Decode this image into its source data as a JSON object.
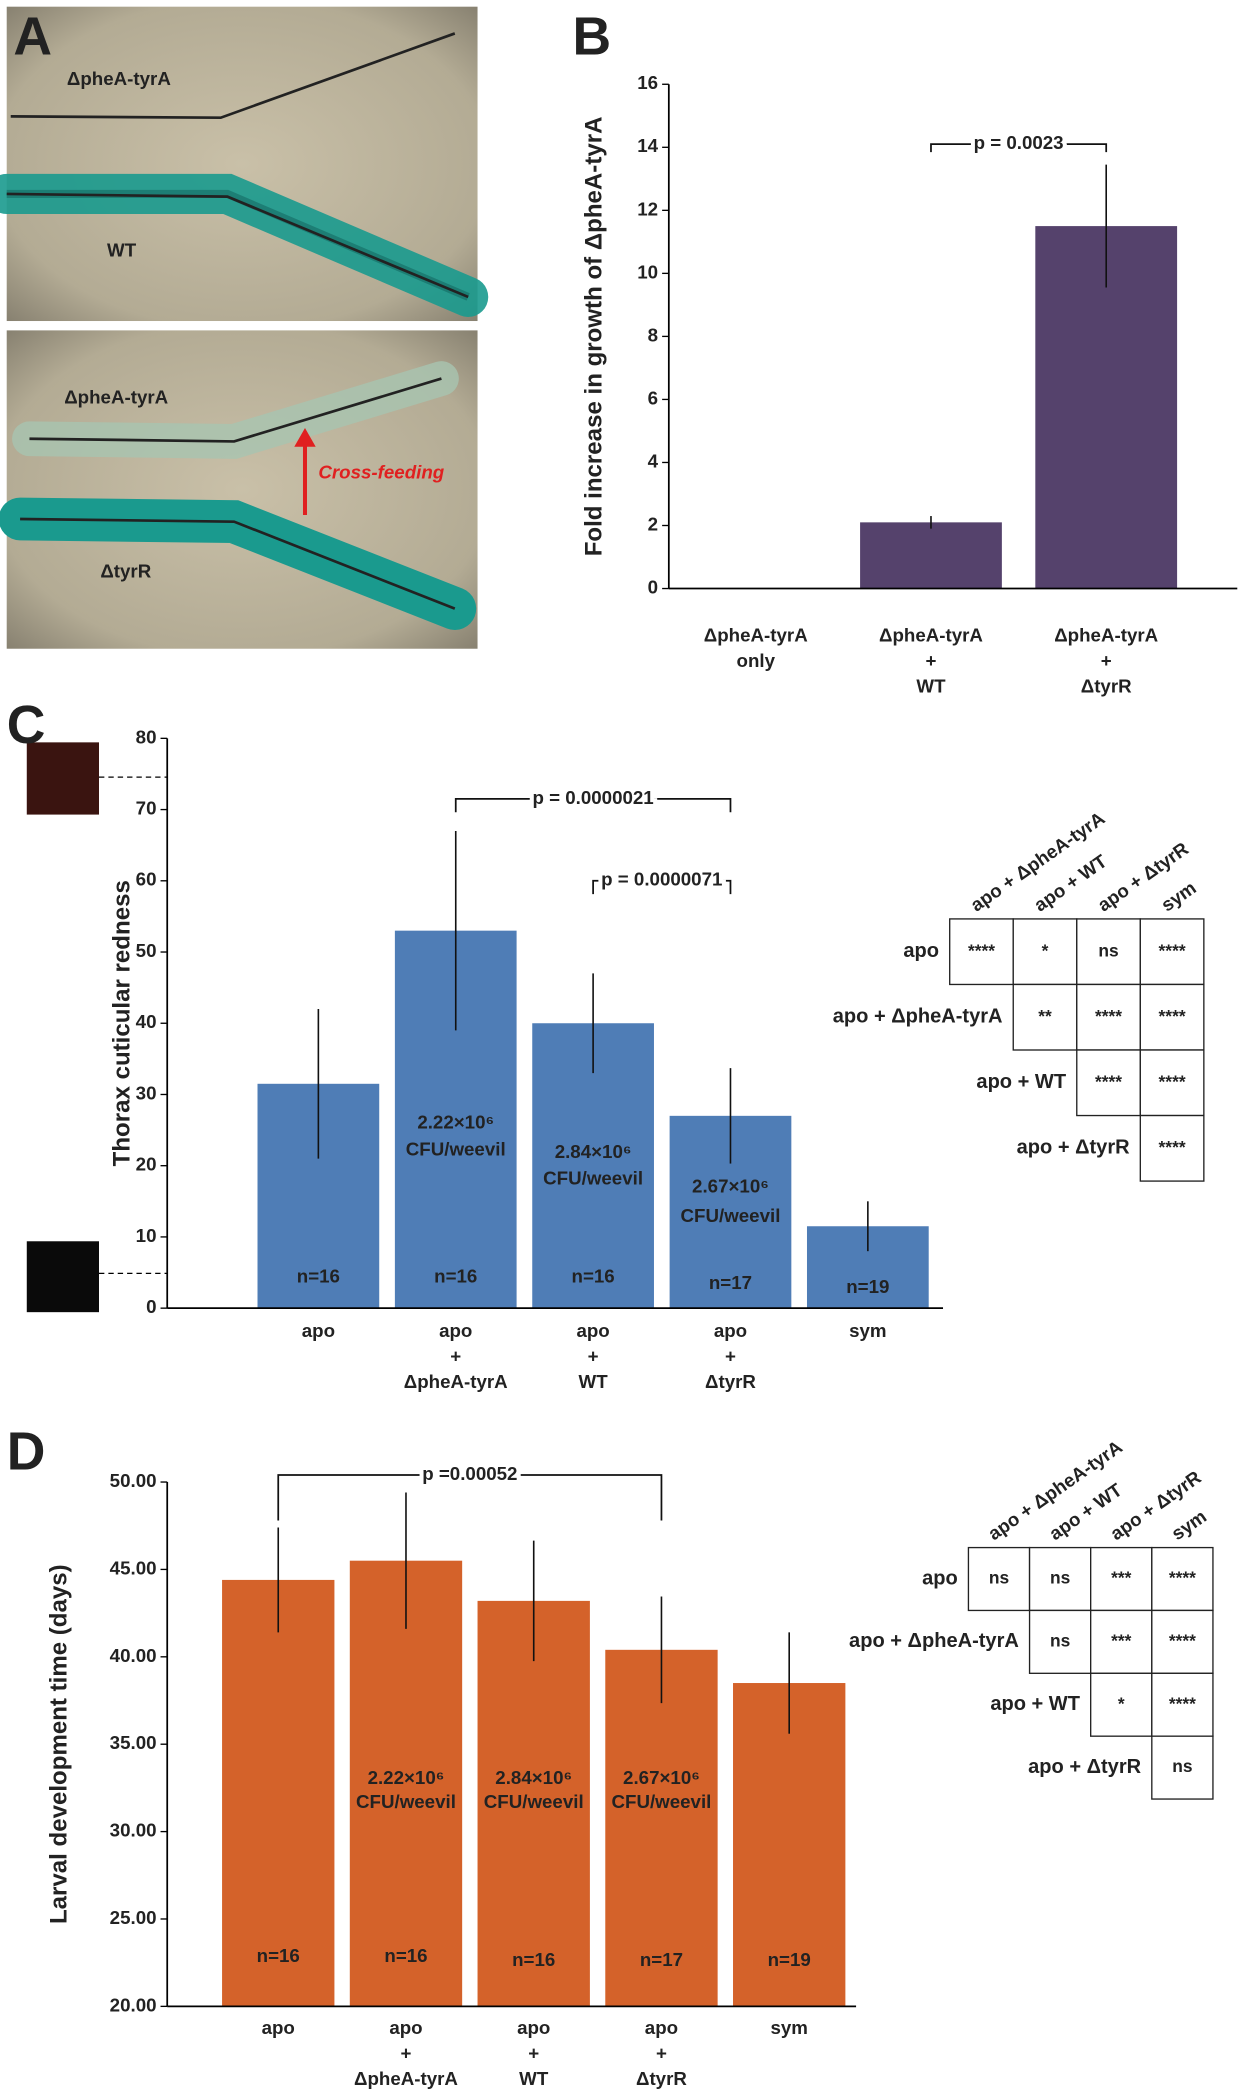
{
  "panel_labels": [
    "A",
    "B",
    "C",
    "D"
  ],
  "panel_a": {
    "top_labels": [
      "ΔpheA-tyrA",
      "WT"
    ],
    "bottom_labels": [
      "ΔpheA-tyrA",
      "ΔtyrR"
    ],
    "arrow_label": "Cross-feeding"
  },
  "chart_data": [
    {
      "type": "bar",
      "y_label": "Fold increase in growth of ΔpheA-tyrA",
      "categories": [
        [
          "ΔpheA-tyrA",
          "only"
        ],
        [
          "ΔpheA-tyrA",
          "+",
          "WT"
        ],
        [
          "ΔpheA-tyrA",
          "+",
          "ΔtyrR"
        ]
      ],
      "values": [
        0,
        2.1,
        11.5
      ],
      "errors": [
        null,
        0.2,
        1.95
      ],
      "color": "#55426c",
      "ylim": [
        0,
        16
      ],
      "yticks": [
        0,
        2,
        4,
        6,
        8,
        10,
        12,
        14,
        16
      ],
      "annotations": [
        "p = 0.0023"
      ]
    },
    {
      "type": "bar",
      "y_label": "Thorax cuticular redness",
      "categories": [
        [
          "apo"
        ],
        [
          "apo",
          "+",
          "ΔpheA-tyrA"
        ],
        [
          "apo",
          "+",
          "WT"
        ],
        [
          "apo",
          "+",
          "ΔtyrR"
        ],
        [
          "sym"
        ]
      ],
      "values": [
        31.5,
        53,
        40,
        27,
        11.5
      ],
      "errors": [
        10.5,
        14,
        7,
        6.7,
        3.5
      ],
      "color": "#4f7db6",
      "ylim": [
        0,
        80
      ],
      "yticks": [
        0,
        10,
        20,
        30,
        40,
        50,
        60,
        70,
        80
      ],
      "n_labels": [
        "n=16",
        "n=16",
        "n=16",
        "n=17",
        "n=19"
      ],
      "cfu_labels": [
        [
          "2.22×10⁶",
          "CFU/weevil"
        ],
        [
          "2.84×10⁶",
          "CFU/weevil"
        ],
        [
          "2.67×10⁶",
          "CFU/weevil"
        ]
      ],
      "annotations": [
        "p = 0.0000021",
        "p = 0.0000071"
      ]
    },
    {
      "type": "bar",
      "y_label": "Larval development time (days)",
      "categories": [
        [
          "apo"
        ],
        [
          "apo",
          "+",
          "ΔpheA-tyrA"
        ],
        [
          "apo",
          "+",
          "WT"
        ],
        [
          "apo",
          "+",
          "ΔtyrR"
        ],
        [
          "sym"
        ]
      ],
      "values": [
        44.4,
        45.5,
        43.2,
        40.4,
        38.5
      ],
      "errors": [
        3,
        3.9,
        3.45,
        3.05,
        2.9
      ],
      "color": "#d4622a",
      "ylim": [
        20,
        50
      ],
      "yticks": [
        {
          "value": 20,
          "label": "20.00"
        },
        {
          "value": 25,
          "label": "25.00"
        },
        {
          "value": 30,
          "label": "30.00"
        },
        {
          "value": 35,
          "label": "35.00"
        },
        {
          "value": 40,
          "label": "40.00"
        },
        {
          "value": 45,
          "label": "45.00"
        },
        {
          "value": 50,
          "label": "50.00"
        }
      ],
      "n_labels": [
        "n=16",
        "n=16",
        "n=16",
        "n=17",
        "n=19"
      ],
      "cfu_labels": [
        [
          "2.22×10⁶",
          "CFU/weevil"
        ],
        [
          "2.84×10⁶",
          "CFU/weevil"
        ],
        [
          "2.67×10⁶",
          "CFU/weevil"
        ]
      ],
      "annotations": [
        "p =0.00052"
      ]
    }
  ],
  "tables": [
    {
      "columns": [
        "apo + ΔpheA-tyrA",
        "apo + WT",
        "apo + ΔtyrR",
        "sym"
      ],
      "rows": [
        {
          "label": "apo",
          "cells": [
            "****",
            "*",
            "ns",
            "****"
          ]
        },
        {
          "label": "apo + ΔpheA-tyrA",
          "cells": [
            "**",
            "****",
            "****"
          ]
        },
        {
          "label": "apo + WT",
          "cells": [
            "****",
            "****"
          ]
        },
        {
          "label": "apo + ΔtyrR",
          "cells": [
            "****"
          ]
        }
      ]
    },
    {
      "columns": [
        "apo + ΔpheA-tyrA",
        "apo + WT",
        "apo + ΔtyrR",
        "sym"
      ],
      "rows": [
        {
          "label": "apo",
          "cells": [
            "ns",
            "ns",
            "***",
            "****"
          ]
        },
        {
          "label": "apo + ΔpheA-tyrA",
          "cells": [
            "ns",
            "***",
            "****"
          ]
        },
        {
          "label": "apo + WT",
          "cells": [
            "*",
            "****"
          ]
        },
        {
          "label": "apo + ΔtyrR",
          "cells": [
            "ns"
          ]
        }
      ]
    }
  ]
}
